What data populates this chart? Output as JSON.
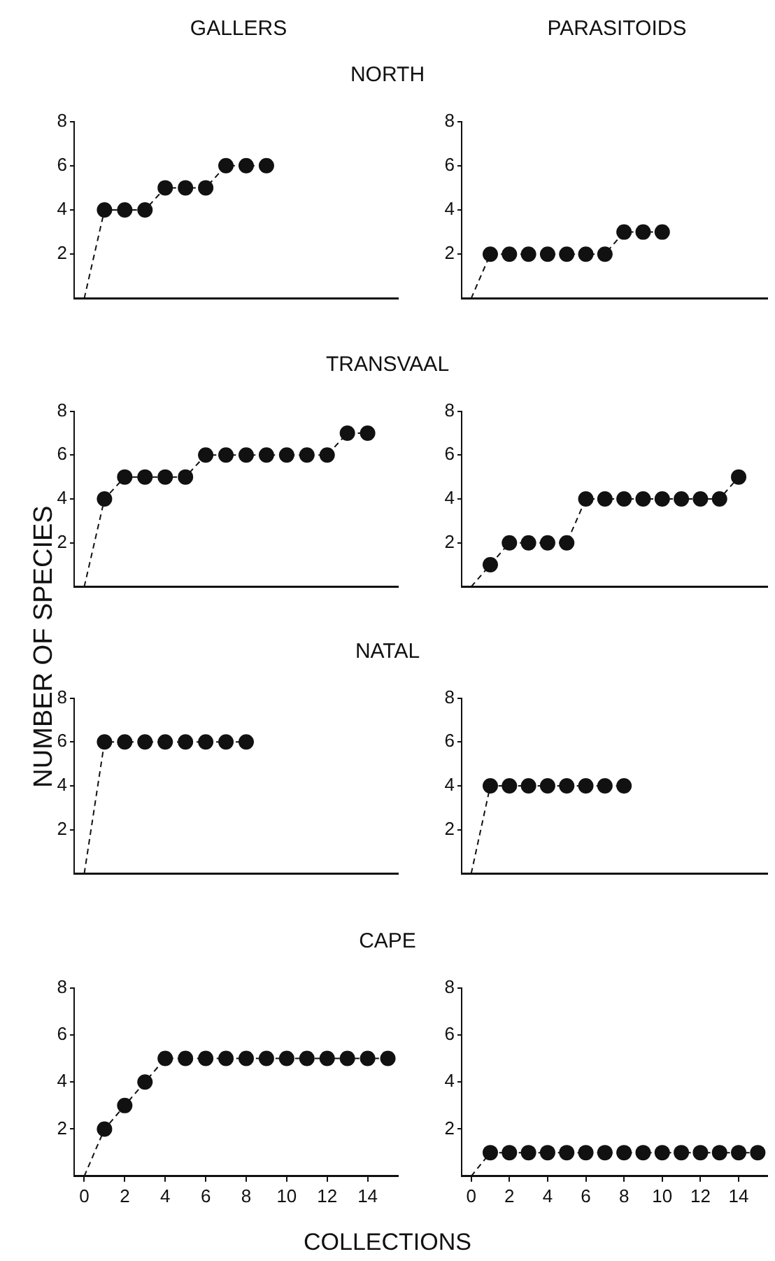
{
  "chart_data": [
    {
      "type": "scatter",
      "title": "NORTH",
      "subtitle": "GALLERS",
      "xlim": [
        -0.5,
        15.5
      ],
      "ylim": [
        0,
        8
      ],
      "yticks": [
        2,
        4,
        6,
        8
      ],
      "tick_labels": "y",
      "series": [
        {
          "type": "line",
          "marker": "none",
          "line_style": "dashed",
          "color": "#111111",
          "x": [
            0,
            1,
            2,
            3,
            4,
            5,
            6,
            7,
            8,
            9
          ],
          "values": [
            0,
            4,
            4,
            4,
            5,
            5,
            5,
            6,
            6,
            6
          ]
        },
        {
          "type": "scatter",
          "marker": "circle",
          "color": "#111111",
          "x": [
            1,
            2,
            3,
            4,
            5,
            6,
            7,
            8,
            9
          ],
          "values": [
            4,
            4,
            4,
            5,
            5,
            5,
            6,
            6,
            6
          ]
        }
      ]
    },
    {
      "type": "scatter",
      "subtitle": "PARASITOIDS",
      "xlim": [
        -0.5,
        15.5
      ],
      "ylim": [
        0,
        8
      ],
      "yticks": [
        2,
        4,
        6,
        8
      ],
      "tick_labels": "y",
      "series": [
        {
          "type": "line",
          "marker": "none",
          "line_style": "dashed",
          "color": "#111111",
          "x": [
            0,
            1,
            2,
            3,
            4,
            5,
            6,
            7,
            8,
            9,
            10
          ],
          "values": [
            0,
            2,
            2,
            2,
            2,
            2,
            2,
            2,
            3,
            3,
            3
          ]
        },
        {
          "type": "scatter",
          "marker": "circle",
          "color": "#111111",
          "x": [
            1,
            2,
            3,
            4,
            5,
            6,
            7,
            8,
            9,
            10
          ],
          "values": [
            2,
            2,
            2,
            2,
            2,
            2,
            2,
            3,
            3,
            3
          ]
        }
      ]
    },
    {
      "type": "scatter",
      "title": "TRANSVAAL",
      "ylabel": "NUMBER OF SPECIES",
      "xlim": [
        -0.5,
        15.5
      ],
      "ylim": [
        0,
        8
      ],
      "yticks": [
        2,
        4,
        6,
        8
      ],
      "tick_labels": "y",
      "series": [
        {
          "type": "line",
          "marker": "none",
          "line_style": "dashed",
          "color": "#111111",
          "x": [
            0,
            1,
            2,
            3,
            4,
            5,
            6,
            7,
            8,
            9,
            10,
            11,
            12,
            13,
            14
          ],
          "values": [
            0,
            4,
            5,
            5,
            5,
            5,
            6,
            6,
            6,
            6,
            6,
            6,
            6,
            7,
            7
          ]
        },
        {
          "type": "scatter",
          "marker": "circle",
          "color": "#111111",
          "x": [
            1,
            2,
            3,
            4,
            5,
            6,
            7,
            8,
            9,
            10,
            11,
            12,
            13,
            14
          ],
          "values": [
            4,
            5,
            5,
            5,
            5,
            6,
            6,
            6,
            6,
            6,
            6,
            6,
            7,
            7
          ]
        }
      ]
    },
    {
      "type": "scatter",
      "xlim": [
        -0.5,
        15.5
      ],
      "ylim": [
        0,
        8
      ],
      "yticks": [
        2,
        4,
        6,
        8
      ],
      "tick_labels": "y",
      "series": [
        {
          "type": "line",
          "marker": "none",
          "line_style": "dashed",
          "color": "#111111",
          "x": [
            0,
            1,
            2,
            3,
            4,
            5,
            6,
            7,
            8,
            9,
            10,
            11,
            12,
            13,
            14
          ],
          "values": [
            0,
            1,
            2,
            2,
            2,
            2,
            4,
            4,
            4,
            4,
            4,
            4,
            4,
            4,
            5
          ]
        },
        {
          "type": "scatter",
          "marker": "circle",
          "color": "#111111",
          "x": [
            1,
            2,
            3,
            4,
            5,
            6,
            7,
            8,
            9,
            10,
            11,
            12,
            13,
            14
          ],
          "values": [
            1,
            2,
            2,
            2,
            2,
            4,
            4,
            4,
            4,
            4,
            4,
            4,
            4,
            5
          ]
        }
      ]
    },
    {
      "type": "scatter",
      "title": "NATAL",
      "xlim": [
        -0.5,
        15.5
      ],
      "ylim": [
        0,
        8
      ],
      "yticks": [
        2,
        4,
        6,
        8
      ],
      "tick_labels": "y",
      "series": [
        {
          "type": "line",
          "marker": "none",
          "line_style": "dashed",
          "color": "#111111",
          "x": [
            0,
            1,
            2,
            3,
            4,
            5,
            6,
            7,
            8
          ],
          "values": [
            0,
            6,
            6,
            6,
            6,
            6,
            6,
            6,
            6
          ]
        },
        {
          "type": "scatter",
          "marker": "circle",
          "color": "#111111",
          "x": [
            1,
            2,
            3,
            4,
            5,
            6,
            7,
            8
          ],
          "values": [
            6,
            6,
            6,
            6,
            6,
            6,
            6,
            6
          ]
        }
      ]
    },
    {
      "type": "scatter",
      "xlim": [
        -0.5,
        15.5
      ],
      "ylim": [
        0,
        8
      ],
      "yticks": [
        2,
        4,
        6,
        8
      ],
      "tick_labels": "y",
      "series": [
        {
          "type": "line",
          "marker": "none",
          "line_style": "dashed",
          "color": "#111111",
          "x": [
            0,
            1,
            2,
            3,
            4,
            5,
            6,
            7,
            8
          ],
          "values": [
            0,
            4,
            4,
            4,
            4,
            4,
            4,
            4,
            4
          ]
        },
        {
          "type": "scatter",
          "marker": "circle",
          "color": "#111111",
          "x": [
            1,
            2,
            3,
            4,
            5,
            6,
            7,
            8
          ],
          "values": [
            4,
            4,
            4,
            4,
            4,
            4,
            4,
            4
          ]
        }
      ]
    },
    {
      "type": "scatter",
      "title": "CAPE",
      "xlabel": "COLLECTIONS",
      "xlim": [
        -0.5,
        15.5
      ],
      "ylim": [
        0,
        8
      ],
      "xticks": [
        0,
        2,
        4,
        6,
        8,
        10,
        12,
        14
      ],
      "yticks": [
        2,
        4,
        6,
        8
      ],
      "series": [
        {
          "type": "line",
          "marker": "none",
          "line_style": "dashed",
          "color": "#111111",
          "x": [
            0,
            1,
            2,
            3,
            4,
            5,
            6,
            7,
            8,
            9,
            10,
            11,
            12,
            13,
            14,
            15
          ],
          "values": [
            0,
            2,
            3,
            4,
            5,
            5,
            5,
            5,
            5,
            5,
            5,
            5,
            5,
            5,
            5,
            5
          ]
        },
        {
          "type": "scatter",
          "marker": "circle",
          "color": "#111111",
          "x": [
            1,
            2,
            3,
            4,
            5,
            6,
            7,
            8,
            9,
            10,
            11,
            12,
            13,
            14,
            15
          ],
          "values": [
            2,
            3,
            4,
            5,
            5,
            5,
            5,
            5,
            5,
            5,
            5,
            5,
            5,
            5,
            5
          ]
        }
      ]
    },
    {
      "type": "scatter",
      "xlim": [
        -0.5,
        15.5
      ],
      "ylim": [
        0,
        8
      ],
      "xticks": [
        0,
        2,
        4,
        6,
        8,
        10,
        12,
        14
      ],
      "yticks": [
        2,
        4,
        6,
        8
      ],
      "series": [
        {
          "type": "line",
          "marker": "none",
          "line_style": "dashed",
          "color": "#111111",
          "x": [
            0,
            1,
            2,
            3,
            4,
            5,
            6,
            7,
            8,
            9,
            10,
            11,
            12,
            13,
            14,
            15
          ],
          "values": [
            0,
            1,
            1,
            1,
            1,
            1,
            1,
            1,
            1,
            1,
            1,
            1,
            1,
            1,
            1,
            1
          ]
        },
        {
          "type": "scatter",
          "marker": "circle",
          "color": "#111111",
          "x": [
            1,
            2,
            3,
            4,
            5,
            6,
            7,
            8,
            9,
            10,
            11,
            12,
            13,
            14,
            15
          ],
          "values": [
            1,
            1,
            1,
            1,
            1,
            1,
            1,
            1,
            1,
            1,
            1,
            1,
            1,
            1,
            1
          ]
        }
      ]
    }
  ]
}
